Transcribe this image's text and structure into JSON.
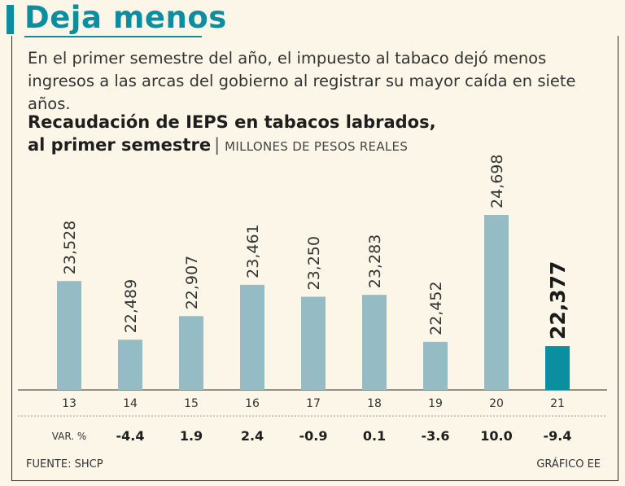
{
  "header": {
    "title": "Deja menos",
    "subtitle": "En el primer semestre del año, el impuesto al tabaco dejó menos ingresos a las arcas del gobierno al registrar su mayor caída en siete años."
  },
  "chart_data": {
    "type": "bar",
    "title_line1": "Recaudación de IEPS en tabacos labrados,",
    "title_line2": "al primer semestre",
    "unit": "MILLONES DE PESOS REALES",
    "categories": [
      "13",
      "14",
      "15",
      "16",
      "17",
      "18",
      "19",
      "20",
      "21"
    ],
    "values": [
      23528,
      22489,
      22907,
      23461,
      23250,
      23283,
      22452,
      24698,
      22377
    ],
    "value_labels": [
      "23,528",
      "22,489",
      "22,907",
      "23,461",
      "23,250",
      "23,283",
      "22,452",
      "24,698",
      "22,377"
    ],
    "ylim": [
      21600,
      24900
    ],
    "highlight_index": 8,
    "variation_label": "VAR. %",
    "variation": [
      "",
      "-4.4",
      "1.9",
      "2.4",
      "-0.9",
      "0.1",
      "-3.6",
      "10.0",
      "-9.4"
    ],
    "colors": {
      "bar": "#95bcc5",
      "highlight": "#0a8ea0"
    }
  },
  "footer": {
    "source": "FUENTE: SHCP",
    "credit": "GRÁFICO EE"
  }
}
